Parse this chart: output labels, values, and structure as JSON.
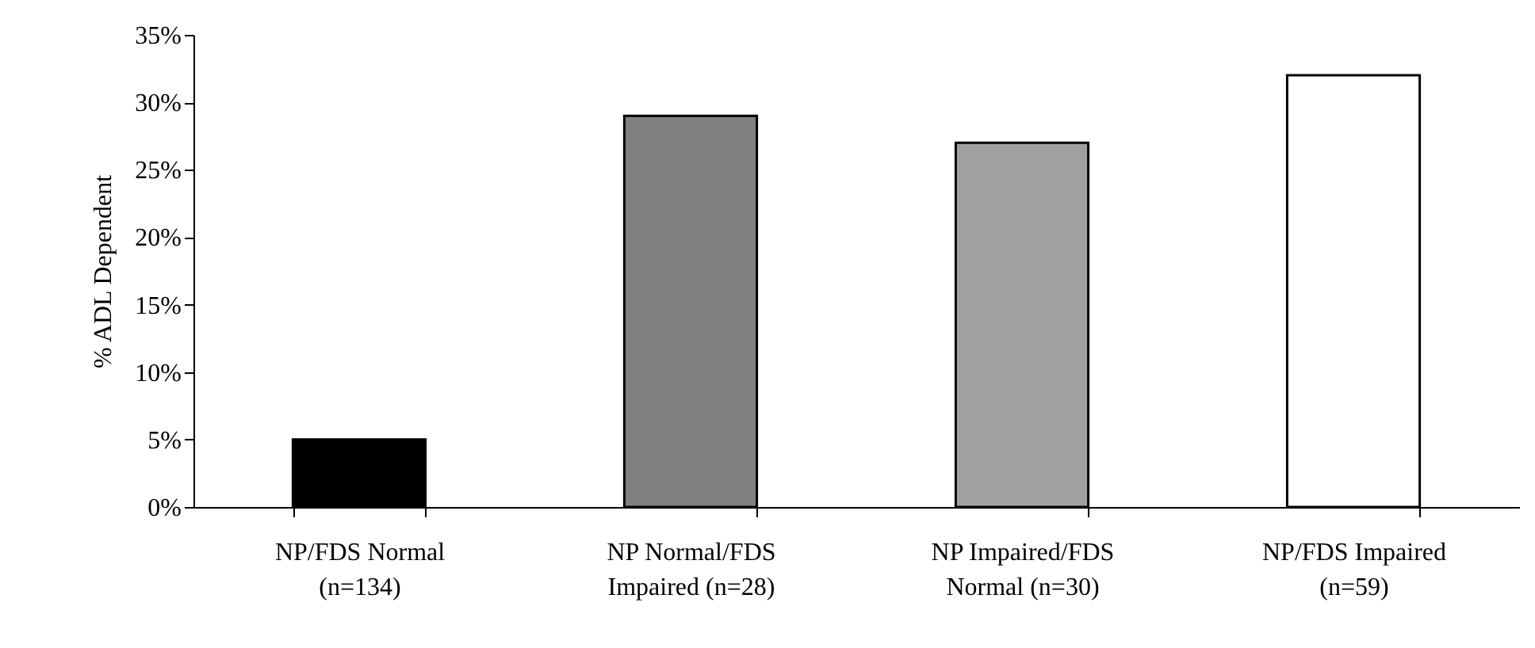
{
  "chart_data": {
    "type": "bar",
    "ylabel": "% ADL Dependent",
    "categories": [
      "NP/FDS Normal (n=134)",
      "NP Normal/FDS Impaired (n=28)",
      "NP Impaired/FDS Normal (n=30)",
      "NP/FDS Impaired (n=59)"
    ],
    "values": [
      5,
      29,
      27,
      32
    ],
    "colors": [
      "#000000",
      "#808080",
      "#a0a0a0",
      "#ffffff"
    ],
    "ylim": [
      0,
      35
    ],
    "yticks": [
      {
        "value": 0,
        "label": "0%"
      },
      {
        "value": 5,
        "label": "5%"
      },
      {
        "value": 10,
        "label": "10%"
      },
      {
        "value": 15,
        "label": "15%"
      },
      {
        "value": 20,
        "label": "20%"
      },
      {
        "value": 25,
        "label": "25%"
      },
      {
        "value": 30,
        "label": "30%"
      },
      {
        "value": 35,
        "label": "35%"
      }
    ],
    "grid": false
  }
}
